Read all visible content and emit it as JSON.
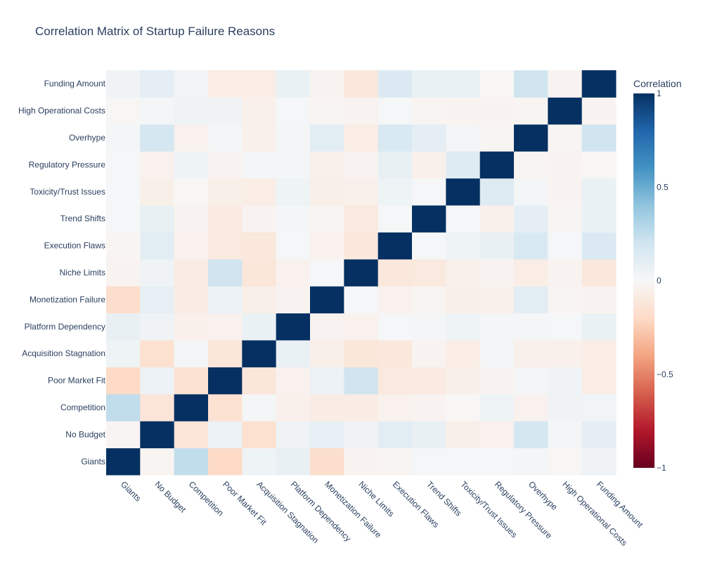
{
  "chart_data": {
    "type": "heatmap",
    "title": "Correlation Matrix of Startup Failure Reasons",
    "colorbar_title": "Correlation",
    "colorscale": "RdBu",
    "zrange": [
      -1,
      1
    ],
    "colorbar_ticks": [
      "1",
      "0.5",
      "0",
      "−0.5",
      "−1"
    ],
    "colorbar_tick_values": [
      1,
      0.5,
      0,
      -0.5,
      -1
    ],
    "labels": [
      "Giants",
      "No Budget",
      "Competition",
      "Poor Market Fit",
      "Acquisition Stagnation",
      "Platform Dependency",
      "Monetization Failure",
      "Niche Limits",
      "Execution Flaws",
      "Trend Shifts",
      "Toxicity/Trust Issues",
      "Regulatory Pressure",
      "Overhype",
      "High Operational Costs",
      "Funding Amount"
    ],
    "matrix": [
      [
        1,
        -0.02,
        0.25,
        -0.2,
        0.05,
        0.08,
        -0.18,
        -0.03,
        -0.02,
        0.01,
        0.01,
        0.01,
        0.02,
        -0.01,
        0.04
      ],
      [
        -0.02,
        1,
        -0.13,
        0.06,
        -0.16,
        0.04,
        0.09,
        0.04,
        0.11,
        0.08,
        -0.06,
        -0.04,
        0.18,
        0.02,
        0.1
      ],
      [
        0.25,
        -0.13,
        1,
        -0.15,
        0.02,
        -0.05,
        -0.08,
        -0.08,
        -0.04,
        -0.03,
        -0.01,
        0.05,
        -0.04,
        0.04,
        0.03
      ],
      [
        -0.2,
        0.06,
        -0.15,
        1,
        -0.12,
        -0.04,
        0.06,
        0.2,
        -0.1,
        -0.09,
        -0.06,
        -0.03,
        0.02,
        0.04,
        -0.07
      ],
      [
        0.05,
        -0.16,
        0.02,
        -0.12,
        1,
        0.07,
        -0.06,
        -0.12,
        -0.11,
        -0.03,
        -0.07,
        0.02,
        -0.05,
        -0.05,
        -0.07
      ],
      [
        0.08,
        0.04,
        -0.05,
        -0.04,
        0.07,
        1,
        -0.03,
        -0.04,
        0.01,
        0.02,
        0.05,
        0.02,
        0.02,
        0.01,
        0.07
      ],
      [
        -0.18,
        0.09,
        -0.08,
        0.06,
        -0.06,
        -0.03,
        1,
        0.01,
        -0.04,
        -0.02,
        -0.06,
        -0.05,
        0.11,
        -0.02,
        -0.03
      ],
      [
        -0.03,
        0.04,
        -0.08,
        0.2,
        -0.12,
        -0.04,
        0.01,
        1,
        -0.11,
        -0.1,
        -0.05,
        -0.03,
        -0.07,
        -0.03,
        -0.11
      ],
      [
        -0.02,
        0.11,
        -0.04,
        -0.1,
        -0.11,
        0.01,
        -0.04,
        -0.11,
        1,
        0.01,
        0.05,
        0.08,
        0.16,
        0.01,
        0.15
      ],
      [
        0.01,
        0.08,
        -0.03,
        -0.09,
        -0.03,
        0.02,
        -0.02,
        -0.1,
        0.01,
        1,
        0.01,
        -0.05,
        0.1,
        -0.02,
        0.07
      ],
      [
        0.01,
        -0.06,
        -0.01,
        -0.06,
        -0.07,
        0.05,
        -0.06,
        -0.05,
        0.05,
        0.01,
        1,
        0.13,
        0.02,
        -0.03,
        0.07
      ],
      [
        0.01,
        -0.04,
        0.05,
        -0.03,
        0.02,
        0.02,
        -0.05,
        -0.03,
        0.08,
        -0.05,
        0.13,
        1,
        -0.02,
        -0.03,
        -0.01
      ],
      [
        0.02,
        0.18,
        -0.04,
        0.02,
        -0.05,
        0.02,
        0.11,
        -0.07,
        0.16,
        0.1,
        0.02,
        -0.02,
        1,
        -0.02,
        0.2
      ],
      [
        -0.01,
        0.02,
        0.04,
        0.04,
        -0.05,
        0.01,
        -0.02,
        -0.03,
        0.01,
        -0.02,
        -0.03,
        -0.03,
        -0.02,
        1,
        -0.03
      ],
      [
        0.04,
        0.1,
        0.03,
        -0.07,
        -0.07,
        0.07,
        -0.03,
        -0.11,
        0.15,
        0.07,
        0.07,
        -0.01,
        0.2,
        -0.03,
        1
      ]
    ]
  }
}
